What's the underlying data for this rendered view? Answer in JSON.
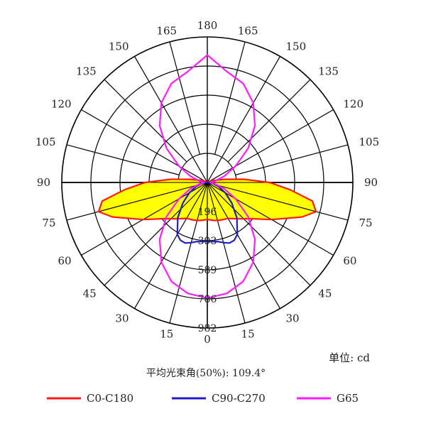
{
  "colors": {
    "c0": "#ff1a1a",
    "c90": "#1e1ec8",
    "g65": "#ff1aff",
    "fill": "#ffff00",
    "grid": "#000000"
  },
  "unit_label": "单位: cd",
  "beam_angle_label": "平均光束角(50%): 109.4°",
  "chart_data": {
    "type": "polar",
    "title": "",
    "radial_ticks": [
      196,
      393,
      589,
      786,
      982
    ],
    "radial_tick_labels": [
      "196",
      "393",
      "589",
      "786",
      "982"
    ],
    "radial_max": 982,
    "angle_ticks": [
      0,
      15,
      30,
      45,
      60,
      75,
      90,
      105,
      120,
      135,
      150,
      165,
      180
    ],
    "angle_tick_labels": [
      "0",
      "15",
      "30",
      "45",
      "60",
      "75",
      "90",
      "105",
      "120",
      "135",
      "150",
      "165",
      "180"
    ],
    "legend_position": "bottom",
    "series": [
      {
        "name": "C0-C180",
        "color": "#ff1a1a",
        "filled": true,
        "points": [
          {
            "angle": 0,
            "value": 250
          },
          {
            "angle": 10,
            "value": 260
          },
          {
            "angle": 20,
            "value": 270
          },
          {
            "angle": 30,
            "value": 280
          },
          {
            "angle": 40,
            "value": 320
          },
          {
            "angle": 50,
            "value": 380
          },
          {
            "angle": 60,
            "value": 500
          },
          {
            "angle": 70,
            "value": 680
          },
          {
            "angle": 75,
            "value": 760
          },
          {
            "angle": 80,
            "value": 720
          },
          {
            "angle": 85,
            "value": 560
          },
          {
            "angle": 90,
            "value": 420
          },
          {
            "angle": 95,
            "value": 250
          },
          {
            "angle": 100,
            "value": 120
          },
          {
            "angle": 110,
            "value": 40
          },
          {
            "angle": 130,
            "value": 5
          },
          {
            "angle": 180,
            "value": 0
          }
        ]
      },
      {
        "name": "C90-C270",
        "color": "#1e1ec8",
        "filled": false,
        "points": [
          {
            "angle": 0,
            "value": 400
          },
          {
            "angle": 5,
            "value": 400
          },
          {
            "angle": 10,
            "value": 405
          },
          {
            "angle": 15,
            "value": 420
          },
          {
            "angle": 20,
            "value": 435
          },
          {
            "angle": 25,
            "value": 430
          },
          {
            "angle": 30,
            "value": 405
          },
          {
            "angle": 40,
            "value": 310
          },
          {
            "angle": 50,
            "value": 215
          },
          {
            "angle": 60,
            "value": 140
          },
          {
            "angle": 70,
            "value": 80
          },
          {
            "angle": 80,
            "value": 40
          },
          {
            "angle": 90,
            "value": 15
          },
          {
            "angle": 100,
            "value": 5
          },
          {
            "angle": 180,
            "value": 0
          }
        ]
      },
      {
        "name": "G65",
        "color": "#ff1aff",
        "filled": false,
        "points": [
          {
            "angle": 0,
            "value": 780
          },
          {
            "angle": 10,
            "value": 760
          },
          {
            "angle": 20,
            "value": 710
          },
          {
            "angle": 30,
            "value": 620
          },
          {
            "angle": 40,
            "value": 500
          },
          {
            "angle": 50,
            "value": 360
          },
          {
            "angle": 60,
            "value": 220
          },
          {
            "angle": 70,
            "value": 120
          },
          {
            "angle": 80,
            "value": 50
          },
          {
            "angle": 90,
            "value": 20
          },
          {
            "angle": 100,
            "value": 50
          },
          {
            "angle": 110,
            "value": 120
          },
          {
            "angle": 120,
            "value": 220
          },
          {
            "angle": 130,
            "value": 360
          },
          {
            "angle": 140,
            "value": 500
          },
          {
            "angle": 150,
            "value": 620
          },
          {
            "angle": 160,
            "value": 710
          },
          {
            "angle": 170,
            "value": 760
          },
          {
            "angle": 180,
            "value": 860
          }
        ]
      }
    ]
  }
}
